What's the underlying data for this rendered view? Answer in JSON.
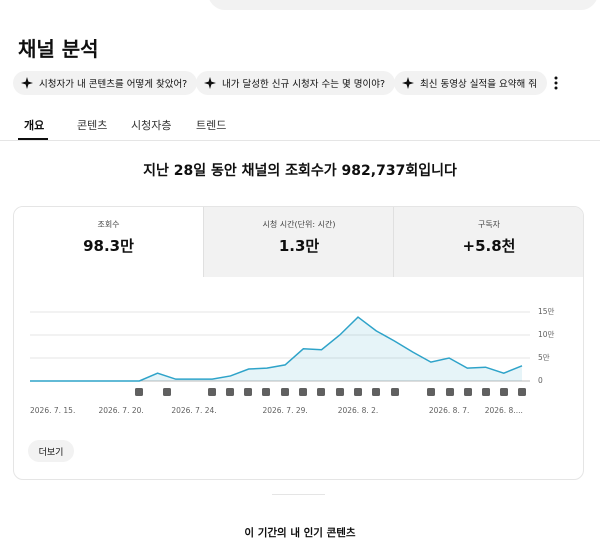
{
  "header": {
    "title": "채널 분석"
  },
  "chips": [
    "시청자가 내 콘텐츠를 어떻게 찾았어?",
    "내가 달성한 신규 시청자 수는 몇 명이야?",
    "최신 동영상 실적을 요약해 줘"
  ],
  "tabs": [
    "개요",
    "콘텐츠",
    "시청자층",
    "트렌드"
  ],
  "headline": "지난 28일 동안 채널의 조회수가 982,737회입니다",
  "metrics": [
    {
      "label": "조회수",
      "value": "98.3만"
    },
    {
      "label": "시청 시간(단위: 시간)",
      "value": "1.3만"
    },
    {
      "label": "구독자",
      "value": "+5.8천"
    }
  ],
  "chart_data": {
    "type": "line",
    "categories": [
      "2026. 7. 15.",
      null,
      null,
      null,
      null,
      "2026. 7. 20.",
      null,
      null,
      null,
      "2026. 7. 24.",
      null,
      null,
      null,
      null,
      "2026. 7. 29.",
      null,
      null,
      null,
      "2026. 8. 2.",
      null,
      null,
      null,
      null,
      "2026. 8. 7.",
      null,
      null,
      "2026. 8....",
      null
    ],
    "series": [
      {
        "color": "#2ea3c9",
        "values": [
          0,
          0,
          0,
          0,
          0,
          0,
          0,
          1.7,
          0.4,
          0.4,
          0.4,
          1.1,
          2.6,
          2.8,
          3.5,
          7,
          6.8,
          10,
          13.9,
          10.9,
          8.7,
          6.3,
          4.1,
          5,
          2.8,
          3,
          1.7,
          3.3
        ]
      }
    ],
    "ylim": [
      0,
      15
    ],
    "yticks": [
      0,
      {
        "value": 5,
        "label": "5만"
      },
      {
        "value": 10,
        "label": "10만"
      },
      {
        "value": 15,
        "label": "15만"
      }
    ],
    "grid": true
  },
  "more_button": "더보기",
  "section_title": "이 기간의 내 인기 콘텐츠"
}
